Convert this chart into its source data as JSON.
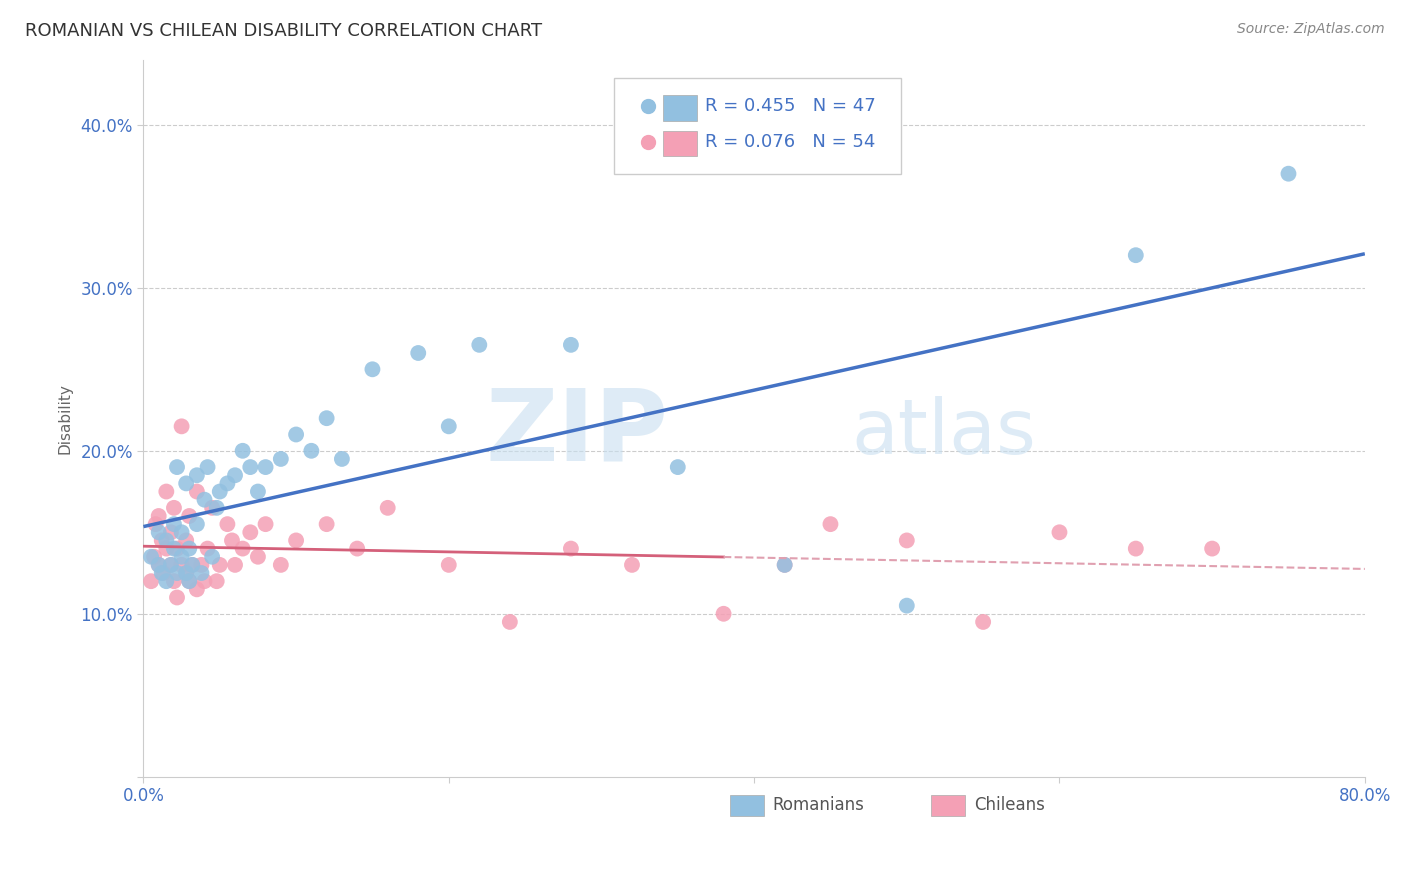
{
  "title": "ROMANIAN VS CHILEAN DISABILITY CORRELATION CHART",
  "source": "Source: ZipAtlas.com",
  "ylabel": "Disability",
  "xlim": [
    0.0,
    0.8
  ],
  "ylim": [
    0.0,
    0.44
  ],
  "xticks": [
    0.0,
    0.2,
    0.4,
    0.6,
    0.8
  ],
  "xticklabels": [
    "0.0%",
    "",
    "",
    "",
    "80.0%"
  ],
  "yticks": [
    0.0,
    0.1,
    0.2,
    0.3,
    0.4
  ],
  "yticklabels": [
    "",
    "10.0%",
    "20.0%",
    "30.0%",
    "40.0%"
  ],
  "grid_yticks": [
    0.1,
    0.2,
    0.3,
    0.4
  ],
  "romanians_R": 0.455,
  "romanians_N": 47,
  "chileans_R": 0.076,
  "chileans_N": 54,
  "romanian_color": "#92c0e0",
  "chilean_color": "#f4a0b5",
  "romanian_line_color": "#4472c4",
  "chilean_line_color": "#d4607a",
  "chilean_dash_color": "#e0a0b0",
  "watermark_zip": "ZIP",
  "watermark_atlas": "atlas",
  "romanians_x": [
    0.005,
    0.01,
    0.01,
    0.012,
    0.015,
    0.015,
    0.018,
    0.02,
    0.02,
    0.022,
    0.022,
    0.025,
    0.025,
    0.028,
    0.028,
    0.03,
    0.03,
    0.032,
    0.035,
    0.035,
    0.038,
    0.04,
    0.042,
    0.045,
    0.048,
    0.05,
    0.055,
    0.06,
    0.065,
    0.07,
    0.075,
    0.08,
    0.09,
    0.1,
    0.11,
    0.12,
    0.13,
    0.15,
    0.18,
    0.2,
    0.22,
    0.28,
    0.35,
    0.42,
    0.5,
    0.65,
    0.75
  ],
  "romanians_y": [
    0.135,
    0.13,
    0.15,
    0.125,
    0.12,
    0.145,
    0.13,
    0.155,
    0.14,
    0.125,
    0.19,
    0.135,
    0.15,
    0.125,
    0.18,
    0.12,
    0.14,
    0.13,
    0.185,
    0.155,
    0.125,
    0.17,
    0.19,
    0.135,
    0.165,
    0.175,
    0.18,
    0.185,
    0.2,
    0.19,
    0.175,
    0.19,
    0.195,
    0.21,
    0.2,
    0.22,
    0.195,
    0.25,
    0.26,
    0.215,
    0.265,
    0.265,
    0.19,
    0.13,
    0.105,
    0.32,
    0.37
  ],
  "chileans_x": [
    0.005,
    0.007,
    0.008,
    0.01,
    0.01,
    0.012,
    0.013,
    0.015,
    0.015,
    0.018,
    0.018,
    0.02,
    0.02,
    0.022,
    0.022,
    0.025,
    0.025,
    0.028,
    0.028,
    0.03,
    0.03,
    0.032,
    0.035,
    0.035,
    0.038,
    0.04,
    0.042,
    0.045,
    0.048,
    0.05,
    0.055,
    0.058,
    0.06,
    0.065,
    0.07,
    0.075,
    0.08,
    0.09,
    0.1,
    0.12,
    0.14,
    0.16,
    0.2,
    0.24,
    0.28,
    0.32,
    0.38,
    0.42,
    0.45,
    0.5,
    0.55,
    0.6,
    0.65,
    0.7
  ],
  "chileans_y": [
    0.12,
    0.135,
    0.155,
    0.13,
    0.16,
    0.145,
    0.125,
    0.14,
    0.175,
    0.13,
    0.15,
    0.12,
    0.165,
    0.14,
    0.11,
    0.13,
    0.215,
    0.125,
    0.145,
    0.12,
    0.16,
    0.13,
    0.115,
    0.175,
    0.13,
    0.12,
    0.14,
    0.165,
    0.12,
    0.13,
    0.155,
    0.145,
    0.13,
    0.14,
    0.15,
    0.135,
    0.155,
    0.13,
    0.145,
    0.155,
    0.14,
    0.165,
    0.13,
    0.095,
    0.14,
    0.13,
    0.1,
    0.13,
    0.155,
    0.145,
    0.095,
    0.15,
    0.14,
    0.14
  ]
}
